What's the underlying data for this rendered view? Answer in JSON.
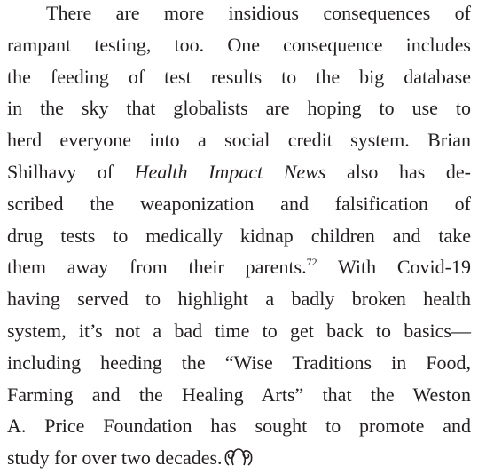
{
  "paragraph": {
    "lines": [
      [
        {
          "text": "There are more insidious consequences of"
        }
      ],
      [
        {
          "text": "rampant testing, too. One consequence includes"
        }
      ],
      [
        {
          "text": "the feeding of test results to the big database"
        }
      ],
      [
        {
          "text": "in the sky that globalists are hoping to use to"
        }
      ],
      [
        {
          "text": "herd everyone into a social credit system. Brian"
        }
      ],
      [
        {
          "text": "Shilhavy of "
        },
        {
          "text": "Health Impact News",
          "style": "italic"
        },
        {
          "text": " also has de-"
        }
      ],
      [
        {
          "text": "scribed the weaponization and falsification of"
        }
      ],
      [
        {
          "text": "drug tests to medically kidnap children and take"
        }
      ],
      [
        {
          "text": "them away from their parents."
        },
        {
          "text": "72",
          "style": "sup"
        },
        {
          "text": " With Covid-19"
        }
      ],
      [
        {
          "text": "having served to highlight a badly broken health"
        }
      ],
      [
        {
          "text": "system, it’s not a bad time to get back to basics—"
        }
      ],
      [
        {
          "text": "including heeding the “Wise Traditions in Food,"
        }
      ],
      [
        {
          "text": "Farming and the Healing Arts” that the Weston"
        }
      ],
      [
        {
          "text": "A. Price Foundation has sought to promote and"
        }
      ],
      [
        {
          "text": "study for over two decades."
        }
      ]
    ]
  }
}
